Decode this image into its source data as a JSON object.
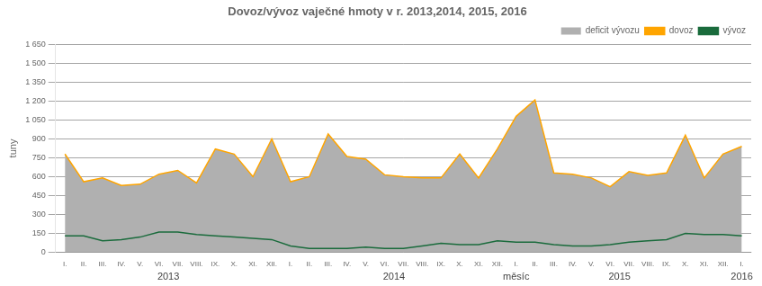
{
  "chart_data": {
    "type": "line",
    "title": "Dovoz/vývoz vaječné hmoty v r. 2013,2014, 2015, 2016",
    "ylabel": "tuny",
    "categories": [
      "I.",
      "II.",
      "III.",
      "IV.",
      "V.",
      "VI.",
      "VII.",
      "VIII.",
      "IX.",
      "X.",
      "XI.",
      "XII.",
      "I.",
      "II.",
      "III.",
      "IV.",
      "V.",
      "VI.",
      "VII.",
      "VIII.",
      "IX.",
      "X.",
      "XI.",
      "XII.",
      "I.",
      "II.",
      "III.",
      "IV.",
      "V.",
      "VI.",
      "VII.",
      "VIII.",
      "IX.",
      "X.",
      "XI.",
      "XII.",
      "I."
    ],
    "series": [
      {
        "name": "deficit vývozu",
        "type": "area",
        "color": "#b0b0b0",
        "values": [
          780,
          560,
          590,
          530,
          540,
          620,
          650,
          550,
          820,
          780,
          600,
          900,
          560,
          600,
          940,
          760,
          740,
          615,
          600,
          590,
          590,
          780,
          590,
          820,
          1080,
          1210,
          630,
          620,
          590,
          520,
          640,
          610,
          630,
          930,
          590,
          780,
          841
        ]
      },
      {
        "name": "dovoz",
        "type": "line",
        "color": "#ffa500",
        "marker": "none",
        "values": [
          780,
          560,
          590,
          530,
          540,
          620,
          650,
          550,
          820,
          780,
          600,
          900,
          560,
          600,
          940,
          760,
          740,
          615,
          600,
          590,
          590,
          780,
          590,
          820,
          1080,
          1210,
          630,
          620,
          590,
          520,
          640,
          610,
          630,
          930,
          590,
          780,
          841
        ]
      },
      {
        "name": "vývoz",
        "type": "line",
        "color": "#1a6b3c",
        "marker": "none",
        "values": [
          130,
          130,
          90,
          100,
          120,
          160,
          160,
          140,
          130,
          120,
          110,
          100,
          50,
          30,
          30,
          30,
          40,
          30,
          30,
          50,
          70,
          60,
          60,
          90,
          80,
          80,
          60,
          50,
          50,
          60,
          80,
          90,
          100,
          150,
          140,
          140,
          130
        ]
      }
    ],
    "ylim": [
      0,
      1650
    ],
    "yticks": [
      0,
      150,
      300,
      450,
      600,
      750,
      900,
      {
        "value": 1050,
        "label": "1 050"
      },
      {
        "value": 1200,
        "label": "1 200"
      },
      {
        "value": 1350,
        "label": "1 350"
      },
      {
        "value": 1500,
        "label": "1 500"
      },
      {
        "value": 1650,
        "label": "1 650"
      }
    ],
    "annotations": [
      {
        "text": "2013",
        "x": 5.5
      },
      {
        "text": "2014",
        "x": 17.5
      },
      {
        "text": "měsíc",
        "x": 24.0
      },
      {
        "text": "2015",
        "x": 29.5
      },
      {
        "text": "2016",
        "x": 36.0
      }
    ],
    "grid": true,
    "legend": "upper right"
  }
}
